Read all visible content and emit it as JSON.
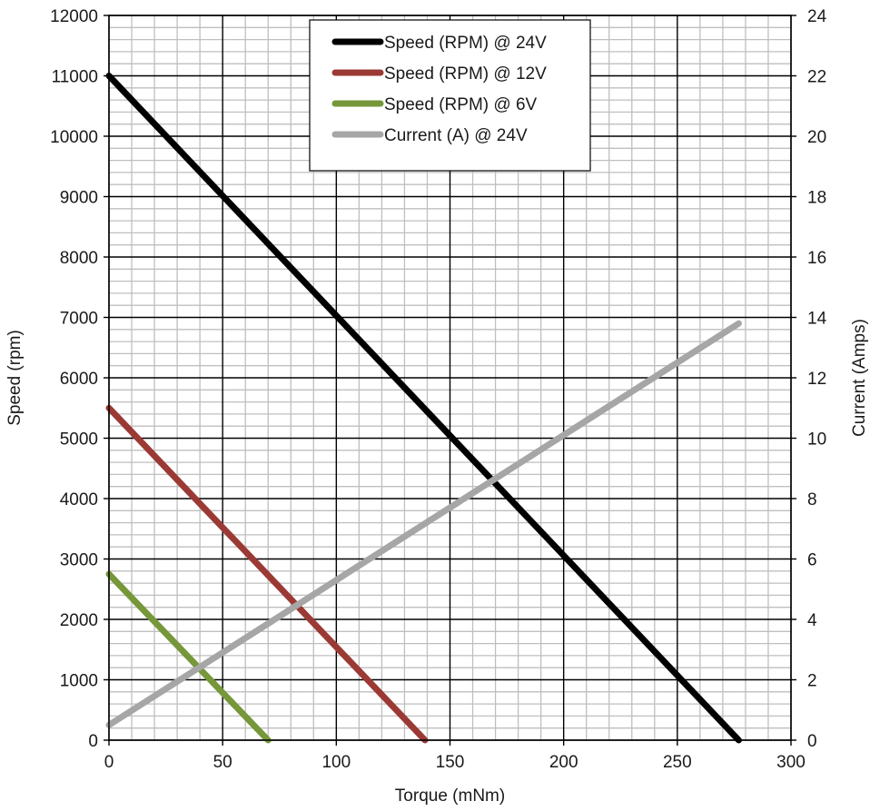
{
  "chart_data": {
    "type": "line",
    "title": "",
    "xlabel": "Torque (mNm)",
    "ylabel": "Speed (rpm)",
    "y2label": "Current (Amps)",
    "xlim": [
      0,
      300
    ],
    "ylim": [
      0,
      12000
    ],
    "y2lim": [
      0,
      24
    ],
    "x_ticks": [
      0,
      50,
      100,
      150,
      200,
      250,
      300
    ],
    "y_ticks": [
      0,
      1000,
      2000,
      3000,
      4000,
      5000,
      6000,
      7000,
      8000,
      9000,
      10000,
      11000,
      12000
    ],
    "y2_ticks": [
      0,
      2,
      4,
      6,
      8,
      10,
      12,
      14,
      16,
      18,
      20,
      22,
      24
    ],
    "grid": true,
    "legend_position": "top-center",
    "series": [
      {
        "name": "Speed (RPM) @ 24V",
        "axis": "left",
        "color": "#000000",
        "x": [
          0,
          277
        ],
        "y": [
          11000,
          0
        ]
      },
      {
        "name": "Speed (RPM) @ 12V",
        "axis": "left",
        "color": "#9b3a35",
        "x": [
          0,
          139
        ],
        "y": [
          5500,
          0
        ]
      },
      {
        "name": "Speed (RPM) @ 6V",
        "axis": "left",
        "color": "#76973a",
        "x": [
          0,
          70
        ],
        "y": [
          2750,
          0
        ]
      },
      {
        "name": "Current (A) @ 24V",
        "axis": "right",
        "color": "#a6a6a6",
        "x": [
          0,
          277
        ],
        "y": [
          0.5,
          13.8
        ]
      }
    ]
  }
}
